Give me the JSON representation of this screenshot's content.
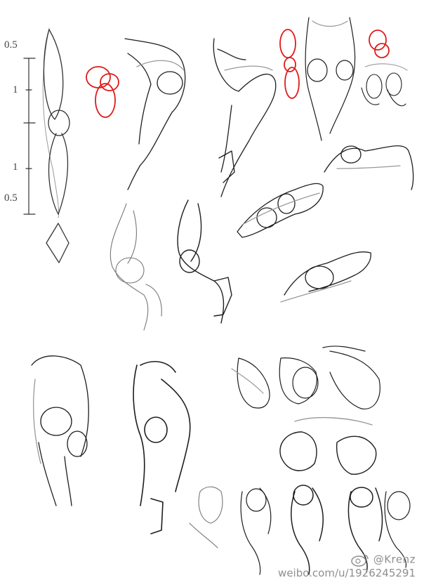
{
  "scale_labels": {
    "top": "0.5",
    "upper_mid": "1",
    "lower_mid": "1",
    "bottom": "0.5"
  },
  "watermark": {
    "handle": "@Krenz",
    "url": "weibo.com/u/1926245291",
    "logo_icon": "weibo-logo-icon"
  },
  "colors": {
    "ink": "#1e1e1e",
    "sketch_light": "#9a9a9a",
    "construction_red": "#e01a1a"
  }
}
